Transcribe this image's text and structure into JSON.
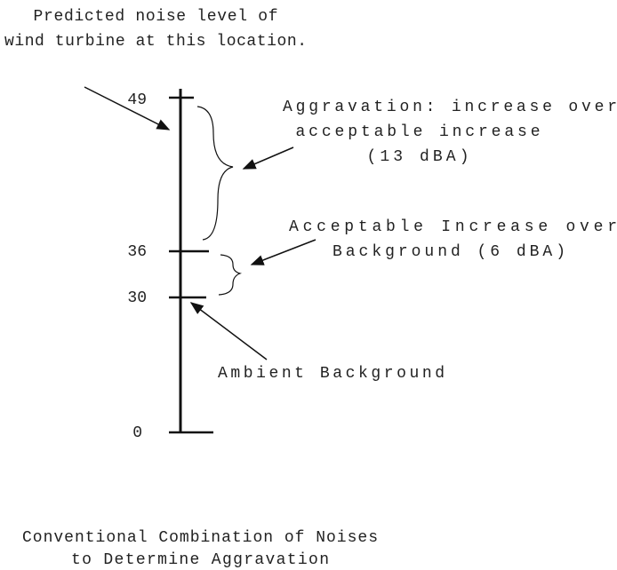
{
  "predicted_label": {
    "lines": [
      "Predicted noise level of",
      "wind turbine at this location."
    ]
  },
  "scale": {
    "labels": [
      "49",
      "36",
      "30",
      "0"
    ]
  },
  "aggravation_label": {
    "lines": [
      "Aggravation: increase over",
      "acceptable increase",
      "(13 dBA)"
    ]
  },
  "acceptable_label": {
    "lines": [
      "Acceptable Increase over",
      "Background (6 dBA)"
    ]
  },
  "ambient_label": "Ambient Background",
  "caption": {
    "lines": [
      "Conventional Combination of Noises",
      "to Determine Aggravation"
    ]
  }
}
